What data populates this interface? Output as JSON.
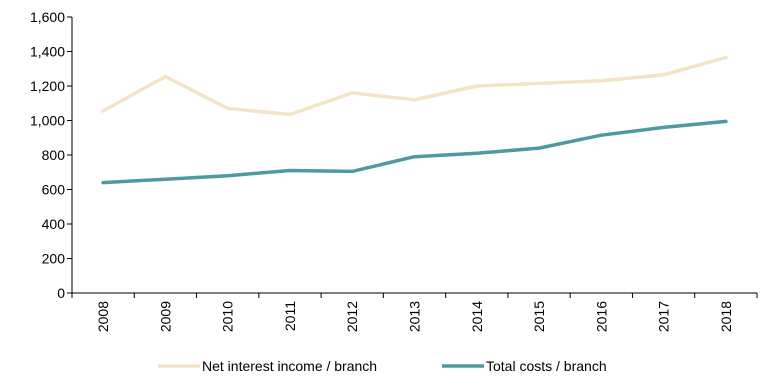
{
  "chart_data": {
    "type": "line",
    "title": "",
    "xlabel": "",
    "ylabel": "",
    "categories": [
      "2008",
      "2009",
      "2010",
      "2011",
      "2012",
      "2013",
      "2014",
      "2015",
      "2016",
      "2017",
      "2018"
    ],
    "ylim": [
      0,
      1600
    ],
    "yticks": [
      0,
      200,
      400,
      600,
      800,
      1000,
      1200,
      1400,
      1600
    ],
    "ytick_labels": [
      "0",
      "200",
      "400",
      "600",
      "800",
      "1,000",
      "1,200",
      "1,400",
      "1,600"
    ],
    "grid": false,
    "legend_position": "bottom",
    "series": [
      {
        "name": "Net interest income / branch",
        "color": "#f2e4c4",
        "values": [
          1055,
          1255,
          1070,
          1035,
          1160,
          1120,
          1200,
          1215,
          1230,
          1265,
          1365
        ]
      },
      {
        "name": "Total costs / branch",
        "color": "#4e9aa0",
        "values": [
          640,
          660,
          680,
          710,
          705,
          790,
          810,
          840,
          915,
          960,
          995
        ]
      }
    ]
  }
}
